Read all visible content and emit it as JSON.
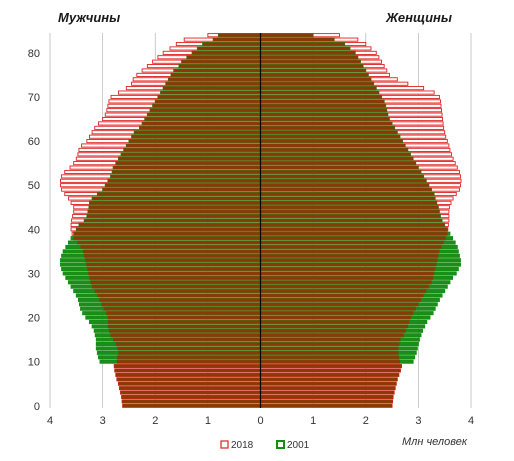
{
  "chart_data": {
    "type": "bar",
    "orientation": "horizontal-population-pyramid",
    "left_title": "Мужчины",
    "right_title": "Женщины",
    "xlabel": "Млн человек",
    "xlim": [
      -4,
      4
    ],
    "ylim": [
      0,
      85
    ],
    "x_ticks": [
      "4",
      "3",
      "2",
      "1",
      "0",
      "1",
      "2",
      "3",
      "4"
    ],
    "y_ticks": [
      "0",
      "10",
      "20",
      "30",
      "40",
      "50",
      "60",
      "70",
      "80"
    ],
    "grid": true,
    "legend_position": "bottom-center",
    "colors": {
      "s2018_stroke": "#e0201e",
      "s2018_fill": "#ffffff",
      "s2001_stroke": "#11900f",
      "s2001_fill": "#1f8b1d",
      "overlap_fill": "#8a3a07",
      "center_line": "#000000",
      "grid": "#bdbdbd"
    },
    "ages": [
      0,
      1,
      2,
      3,
      4,
      5,
      6,
      7,
      8,
      9,
      10,
      11,
      12,
      13,
      14,
      15,
      16,
      17,
      18,
      19,
      20,
      21,
      22,
      23,
      24,
      25,
      26,
      27,
      28,
      29,
      30,
      31,
      32,
      33,
      34,
      35,
      36,
      37,
      38,
      39,
      40,
      41,
      42,
      43,
      44,
      45,
      46,
      47,
      48,
      49,
      50,
      51,
      52,
      53,
      54,
      55,
      56,
      57,
      58,
      59,
      60,
      61,
      62,
      63,
      64,
      65,
      66,
      67,
      68,
      69,
      70,
      71,
      72,
      73,
      74,
      75,
      76,
      77,
      78,
      79,
      80,
      81,
      82,
      83,
      84
    ],
    "series": [
      {
        "name": "2018",
        "male": [
          2.62,
          2.63,
          2.64,
          2.66,
          2.68,
          2.7,
          2.73,
          2.75,
          2.77,
          2.78,
          2.73,
          2.72,
          2.7,
          2.72,
          2.75,
          2.8,
          2.85,
          2.88,
          2.9,
          2.9,
          2.9,
          2.93,
          2.98,
          3.02,
          3.06,
          3.1,
          3.15,
          3.2,
          3.23,
          3.25,
          3.27,
          3.29,
          3.31,
          3.33,
          3.35,
          3.37,
          3.42,
          3.48,
          3.55,
          3.58,
          3.6,
          3.6,
          3.59,
          3.57,
          3.55,
          3.55,
          3.6,
          3.65,
          3.72,
          3.78,
          3.8,
          3.8,
          3.78,
          3.72,
          3.62,
          3.55,
          3.5,
          3.47,
          3.45,
          3.4,
          3.3,
          3.25,
          3.2,
          3.15,
          3.08,
          3.0,
          2.95,
          2.92,
          2.9,
          2.88,
          2.84,
          2.7,
          2.55,
          2.45,
          2.42,
          2.35,
          2.25,
          2.15,
          2.05,
          1.95,
          1.85,
          1.72,
          1.6,
          1.45,
          1.0
        ],
        "female": [
          2.5,
          2.51,
          2.52,
          2.54,
          2.56,
          2.58,
          2.6,
          2.63,
          2.66,
          2.68,
          2.65,
          2.63,
          2.62,
          2.62,
          2.64,
          2.66,
          2.72,
          2.76,
          2.8,
          2.83,
          2.86,
          2.9,
          2.95,
          3.0,
          3.05,
          3.1,
          3.15,
          3.2,
          3.25,
          3.28,
          3.3,
          3.32,
          3.34,
          3.36,
          3.38,
          3.4,
          3.44,
          3.48,
          3.52,
          3.55,
          3.56,
          3.57,
          3.58,
          3.58,
          3.58,
          3.59,
          3.62,
          3.66,
          3.72,
          3.78,
          3.8,
          3.81,
          3.8,
          3.78,
          3.74,
          3.7,
          3.66,
          3.63,
          3.6,
          3.58,
          3.55,
          3.52,
          3.5,
          3.48,
          3.47,
          3.46,
          3.45,
          3.44,
          3.43,
          3.42,
          3.4,
          3.3,
          3.1,
          2.8,
          2.6,
          2.45,
          2.4,
          2.35,
          2.3,
          2.25,
          2.2,
          2.1,
          2.0,
          1.85,
          1.5
        ]
      },
      {
        "name": "2001",
        "male": [
          0,
          0,
          0,
          0,
          0,
          0,
          0,
          0,
          0,
          0,
          3.05,
          3.08,
          3.1,
          3.12,
          3.12,
          3.12,
          3.14,
          3.16,
          3.2,
          3.25,
          3.32,
          3.38,
          3.42,
          3.44,
          3.46,
          3.5,
          3.55,
          3.6,
          3.65,
          3.7,
          3.75,
          3.78,
          3.8,
          3.8,
          3.78,
          3.75,
          3.7,
          3.65,
          3.6,
          3.55,
          3.5,
          3.45,
          3.35,
          3.3,
          3.28,
          3.26,
          3.25,
          3.2,
          3.1,
          3.0,
          2.95,
          2.9,
          2.85,
          2.82,
          2.8,
          2.75,
          2.7,
          2.65,
          2.6,
          2.55,
          2.5,
          2.45,
          2.4,
          2.3,
          2.25,
          2.2,
          2.15,
          2.1,
          2.05,
          2.0,
          1.95,
          1.9,
          1.85,
          1.8,
          1.75,
          1.7,
          1.65,
          1.55,
          1.5,
          1.4,
          1.3,
          1.2,
          1.1,
          0.9,
          0.8
        ],
        "female": [
          0,
          0,
          0,
          0,
          0,
          0,
          0,
          0,
          0,
          0,
          2.9,
          2.93,
          2.96,
          2.98,
          3.0,
          3.02,
          3.05,
          3.08,
          3.12,
          3.16,
          3.22,
          3.28,
          3.32,
          3.36,
          3.4,
          3.45,
          3.5,
          3.55,
          3.6,
          3.65,
          3.72,
          3.76,
          3.8,
          3.8,
          3.78,
          3.76,
          3.74,
          3.7,
          3.65,
          3.6,
          3.55,
          3.5,
          3.45,
          3.42,
          3.4,
          3.38,
          3.35,
          3.32,
          3.3,
          3.25,
          3.2,
          3.15,
          3.1,
          3.05,
          3.0,
          2.95,
          2.9,
          2.85,
          2.8,
          2.75,
          2.7,
          2.65,
          2.6,
          2.55,
          2.5,
          2.45,
          2.42,
          2.4,
          2.38,
          2.35,
          2.3,
          2.25,
          2.2,
          2.15,
          2.1,
          2.05,
          2.0,
          1.95,
          1.9,
          1.85,
          1.8,
          1.7,
          1.6,
          1.4,
          1.0
        ]
      }
    ]
  }
}
